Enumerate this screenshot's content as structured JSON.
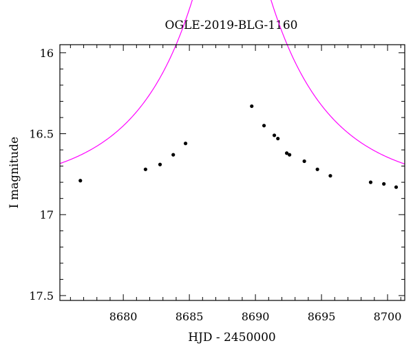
{
  "chart_data": {
    "type": "scatter",
    "title": "OGLE-2019-BLG-1160",
    "xlabel": "HJD - 2450000",
    "ylabel": "I magnitude",
    "xlim": [
      8675.2,
      8701.3
    ],
    "ylim": [
      17.53,
      15.95
    ],
    "y_inverted": true,
    "grid": false,
    "x_ticks": [
      8680,
      8685,
      8690,
      8695,
      8700
    ],
    "x_tick_labels": [
      "8680",
      "8685",
      "8690",
      "8695",
      "8700"
    ],
    "y_ticks": [
      16,
      16.5,
      17,
      17.5
    ],
    "y_tick_labels": [
      "16",
      "16.5",
      "17",
      "17.5"
    ],
    "data_color": "#000000",
    "model_color": "#ff00ff",
    "series": [
      {
        "type": "scatter",
        "x": [
          8676.75,
          8681.68,
          8682.78,
          8683.78,
          8684.71,
          8689.72,
          8690.65,
          8691.43,
          8691.7,
          8692.37,
          8692.58,
          8693.7,
          8694.69,
          8695.67,
          8698.72,
          8699.72,
          8700.65
        ],
        "y": [
          16.79,
          16.72,
          16.69,
          16.63,
          16.56,
          16.33,
          16.45,
          16.51,
          16.53,
          16.62,
          16.63,
          16.67,
          16.72,
          16.76,
          16.8,
          16.81,
          16.83
        ],
        "yerr": [
          0.01,
          0.01,
          0.008,
          0.008,
          0.008,
          0.008,
          0.008,
          0.008,
          0.008,
          0.01,
          0.008,
          0.008,
          0.008,
          0.008,
          0.008,
          0.008,
          0.01
        ]
      },
      {
        "type": "line",
        "model": {
          "t0": 8688.2,
          "u0": 0.165,
          "tE": 9.5,
          "I_base": 16.85
        }
      }
    ]
  }
}
